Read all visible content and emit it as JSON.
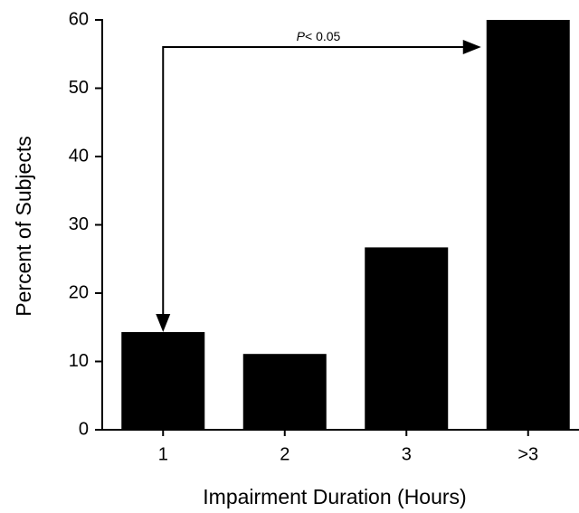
{
  "chart_data": {
    "type": "bar",
    "x_label": "Impairment Duration (Hours)",
    "y_label": "Percent of Subjects",
    "annotation": [
      "P",
      "< 0.05"
    ],
    "categories": [
      "1",
      "2",
      "3",
      ">3"
    ],
    "values": [
      14.3,
      11.1,
      26.7,
      60
    ],
    "color": "#000000",
    "ylim": [
      0,
      60
    ],
    "yticks": [
      0,
      10,
      20,
      30,
      40,
      50,
      60
    ]
  }
}
